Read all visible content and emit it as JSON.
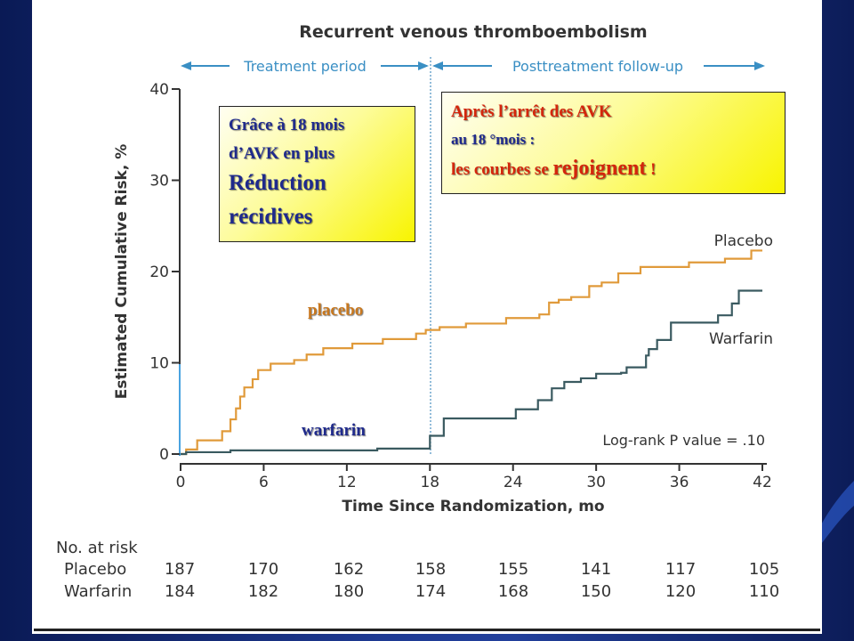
{
  "chart_data": {
    "type": "line",
    "step": true,
    "title": "Recurrent venous thromboembolism",
    "periods": [
      "Treatment period",
      "Posttreatment follow-up"
    ],
    "xlabel": "Time Since Randomization, mo",
    "ylabel": "Estimated Cumulative Risk, %",
    "xlim": [
      0,
      42
    ],
    "ylim": [
      0,
      40
    ],
    "xticks": [
      0,
      6,
      12,
      18,
      24,
      30,
      36,
      42
    ],
    "yticks": [
      0,
      10,
      20,
      30,
      40
    ],
    "treatment_end": 18,
    "grid": false,
    "colors": {
      "placebo": "#e09a3a",
      "warfarin": "#3a5a60",
      "axis": "#333333",
      "divider": "#4a90c0"
    },
    "series": [
      {
        "name": "Placebo",
        "x": [
          0,
          0.4,
          1.2,
          3.0,
          3.6,
          4.0,
          4.3,
          4.6,
          5.2,
          5.6,
          6.5,
          8.2,
          9.1,
          10.3,
          12.4,
          14.6,
          17.0,
          17.7,
          18.7,
          20.6,
          23.5,
          25.9,
          26.6,
          27.3,
          28.2,
          29.5,
          30.4,
          31.6,
          33.2,
          36.6,
          36.7,
          39.3,
          41.2,
          42
        ],
        "y": [
          0,
          0.5,
          1.5,
          2.5,
          3.8,
          5.0,
          6.3,
          7.3,
          8.2,
          9.2,
          9.9,
          10.3,
          10.9,
          11.6,
          12.1,
          12.6,
          13.2,
          13.6,
          13.9,
          14.3,
          14.9,
          15.3,
          16.6,
          16.9,
          17.2,
          18.4,
          18.8,
          19.8,
          20.5,
          20.5,
          21.0,
          21.4,
          22.3,
          22.3
        ]
      },
      {
        "name": "Warfarin",
        "x": [
          0,
          0.4,
          3.6,
          14.2,
          18.0,
          19.0,
          24.2,
          25.8,
          26.8,
          27.7,
          28.9,
          30.0,
          31.8,
          32.2,
          33.6,
          33.8,
          34.4,
          35.4,
          38.8,
          39.8,
          40.3,
          42
        ],
        "y": [
          0,
          0.2,
          0.4,
          0.6,
          2.0,
          3.9,
          4.9,
          5.9,
          7.2,
          7.9,
          8.3,
          8.8,
          8.9,
          9.5,
          10.8,
          11.5,
          12.5,
          14.4,
          15.2,
          16.5,
          17.9,
          17.9
        ]
      }
    ],
    "annotations": {
      "log_rank": "Log-rank P value = .10"
    },
    "at_risk": {
      "header": "No. at risk",
      "rows": [
        {
          "label": "Placebo",
          "values": [
            187,
            170,
            162,
            158,
            155,
            141,
            117,
            105
          ]
        },
        {
          "label": "Warfarin",
          "values": [
            184,
            182,
            180,
            174,
            168,
            150,
            120,
            110
          ]
        }
      ]
    }
  },
  "overlays": {
    "left_box": {
      "line1": "Grâce à 18 mois",
      "line2": "d’AVK en plus",
      "line3": "Réduction",
      "line4": "récidives"
    },
    "right_box": {
      "line1": "Après l’arrêt des AVK",
      "line2": "au 18 °mois   :",
      "line3_prefix": "les courbes se ",
      "line3_emph": "rejoignent",
      "line3_suffix": " !"
    },
    "curve_tags": {
      "placebo": "placebo",
      "warfarin": "warfarin"
    }
  }
}
